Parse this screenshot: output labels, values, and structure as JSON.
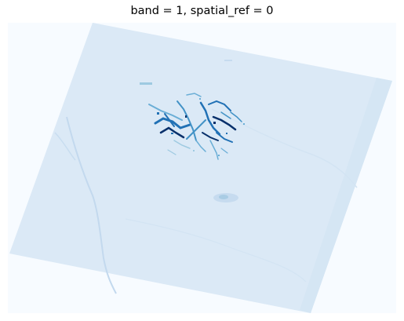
{
  "title": "band = 1, spatial_ref = 0",
  "colors": {
    "nodata": "#f7fbff",
    "scene": "#dbe9f6",
    "scene_dark": "#d0e2f2",
    "feature_light": "#6aaed6",
    "feature_mid": "#2171b5",
    "feature_dark": "#08306b",
    "river": "#c6dbef"
  },
  "colormap": "Blues",
  "axes": "off"
}
